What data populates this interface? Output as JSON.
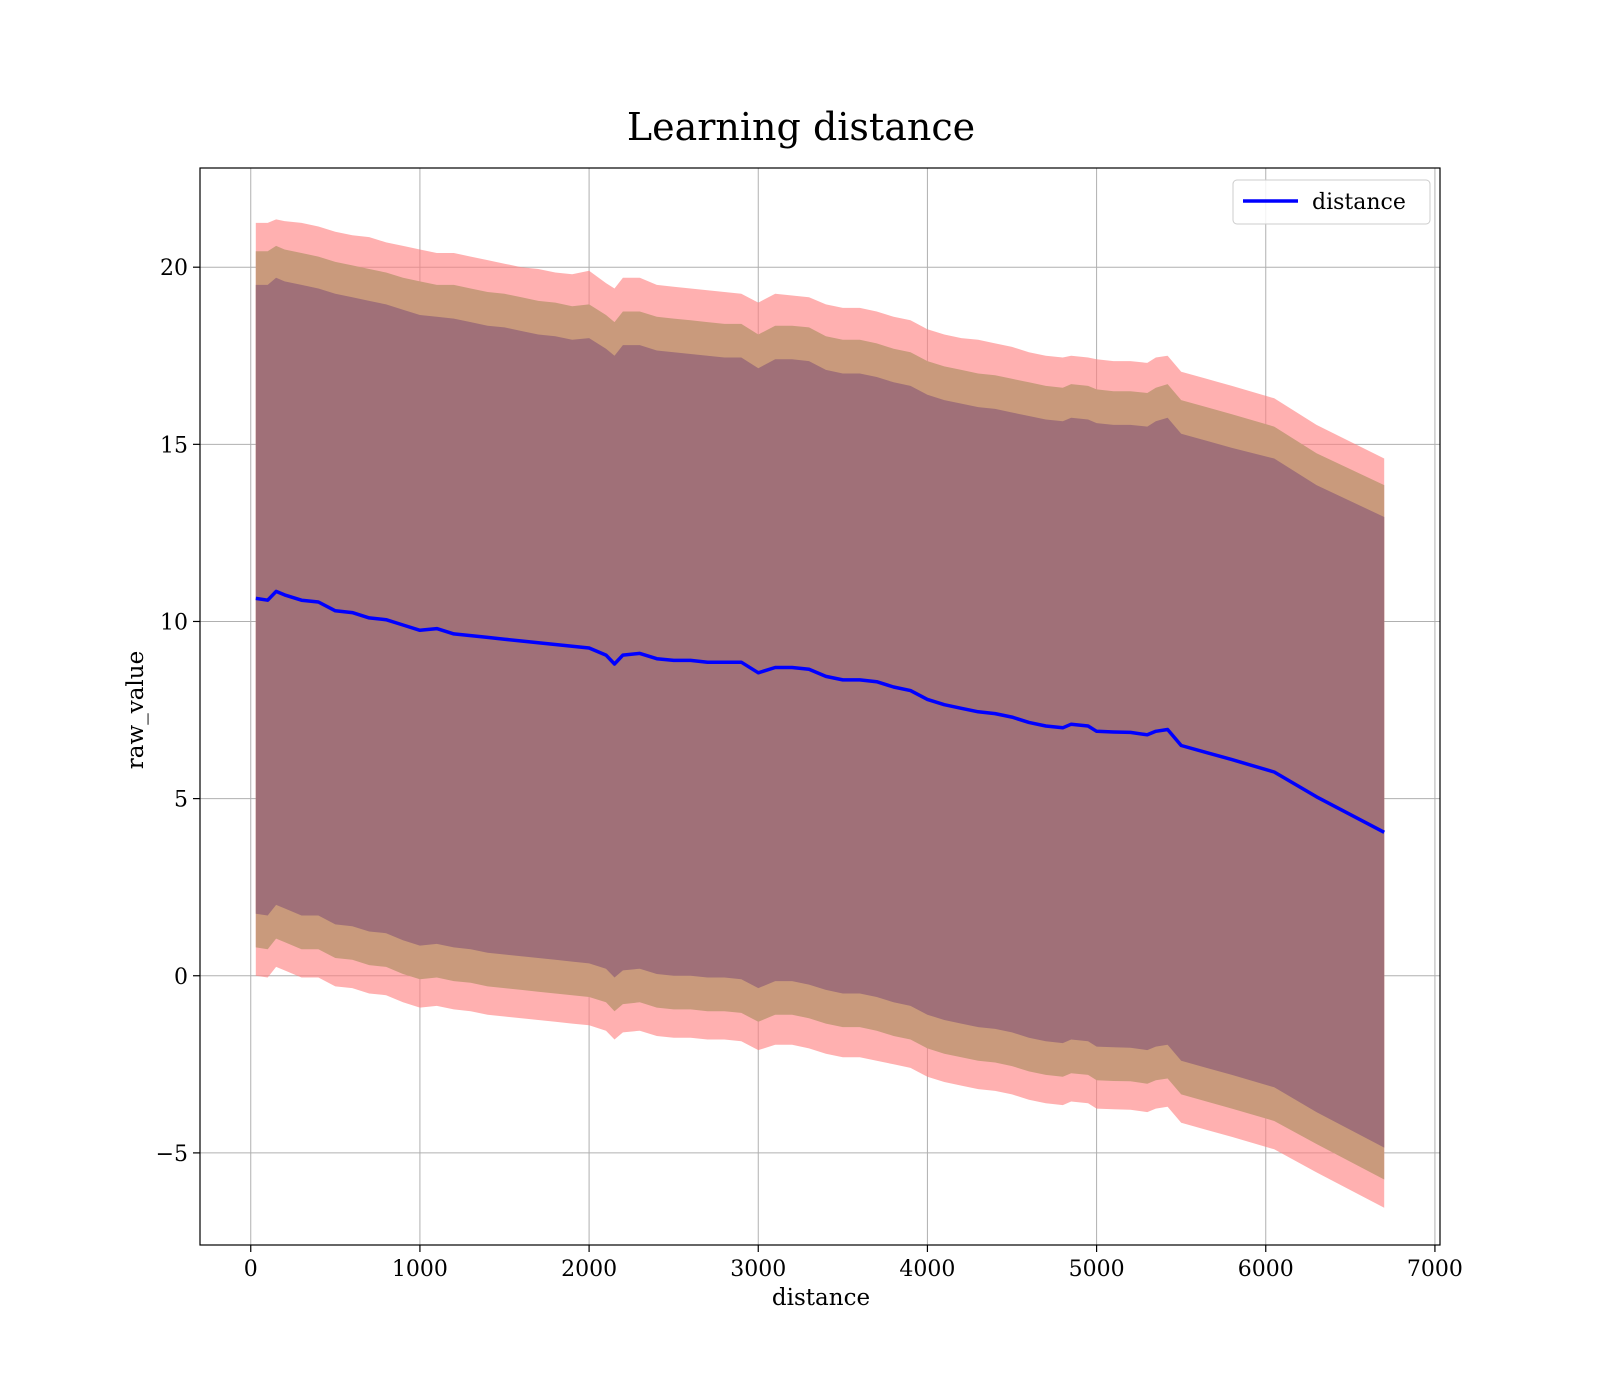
{
  "chart_data": {
    "type": "line",
    "title": "Learning distance",
    "xlabel": "distance",
    "ylabel": "raw_value",
    "xlim": [
      -300,
      7030
    ],
    "ylim": [
      -7.6,
      22.8
    ],
    "xticks": [
      0,
      1000,
      2000,
      3000,
      4000,
      5000,
      6000,
      7000
    ],
    "xtick_labels": [
      "0",
      "1000",
      "2000",
      "3000",
      "4000",
      "5000",
      "6000",
      "7000"
    ],
    "yticks": [
      -5,
      0,
      5,
      10,
      15,
      20
    ],
    "ytick_labels": [
      "−5",
      "0",
      "5",
      "10",
      "15",
      "20"
    ],
    "grid": true,
    "legend": {
      "position": "top-right",
      "entries": [
        "distance"
      ]
    },
    "colors": {
      "line": "#0000ff",
      "band_outer": "#ff8080",
      "band_middle": "#c99a7c",
      "band_inner": "#a07078"
    },
    "x": [
      30,
      100,
      150,
      200,
      300,
      400,
      500,
      600,
      700,
      800,
      900,
      1000,
      1100,
      1200,
      1300,
      1400,
      1500,
      1600,
      1700,
      1800,
      1900,
      2000,
      2100,
      2150,
      2200,
      2300,
      2400,
      2500,
      2600,
      2700,
      2800,
      2900,
      3000,
      3100,
      3200,
      3300,
      3400,
      3500,
      3600,
      3700,
      3800,
      3900,
      4000,
      4100,
      4200,
      4300,
      4400,
      4500,
      4600,
      4700,
      4800,
      4850,
      4950,
      5000,
      5100,
      5200,
      5300,
      5350,
      5420,
      5500,
      5650,
      5800,
      6050,
      6300,
      6700
    ],
    "series": [
      {
        "name": "distance",
        "values": [
          10.65,
          10.6,
          10.85,
          10.75,
          10.6,
          10.55,
          10.3,
          10.25,
          10.1,
          10.05,
          9.9,
          9.75,
          9.8,
          9.65,
          9.6,
          9.55,
          9.5,
          9.45,
          9.4,
          9.35,
          9.3,
          9.25,
          9.05,
          8.8,
          9.05,
          9.1,
          8.95,
          8.9,
          8.9,
          8.85,
          8.85,
          8.85,
          8.55,
          8.7,
          8.7,
          8.65,
          8.45,
          8.35,
          8.35,
          8.3,
          8.15,
          8.05,
          7.8,
          7.65,
          7.55,
          7.45,
          7.4,
          7.3,
          7.15,
          7.05,
          7.0,
          7.1,
          7.05,
          6.9,
          6.88,
          6.87,
          6.8,
          6.9,
          6.95,
          6.5,
          6.3,
          6.1,
          5.75,
          5.05,
          4.05
        ]
      }
    ],
    "bands": [
      {
        "upper": [
          21.25,
          21.25,
          21.35,
          21.3,
          21.25,
          21.15,
          21.0,
          20.9,
          20.85,
          20.7,
          20.6,
          20.5,
          20.4,
          20.4,
          20.3,
          20.2,
          20.1,
          20.0,
          19.95,
          19.85,
          19.8,
          19.9,
          19.55,
          19.4,
          19.7,
          19.7,
          19.5,
          19.45,
          19.4,
          19.35,
          19.3,
          19.25,
          19.0,
          19.25,
          19.2,
          19.15,
          18.95,
          18.85,
          18.85,
          18.75,
          18.6,
          18.5,
          18.25,
          18.1,
          18.0,
          17.95,
          17.85,
          17.75,
          17.6,
          17.5,
          17.45,
          17.5,
          17.45,
          17.4,
          17.35,
          17.35,
          17.3,
          17.45,
          17.5,
          17.05,
          16.85,
          16.65,
          16.3,
          15.55,
          14.6
        ],
        "lower": [
          0.0,
          -0.05,
          0.25,
          0.15,
          -0.05,
          -0.05,
          -0.3,
          -0.35,
          -0.5,
          -0.55,
          -0.75,
          -0.9,
          -0.85,
          -0.95,
          -1.0,
          -1.1,
          -1.15,
          -1.2,
          -1.25,
          -1.3,
          -1.35,
          -1.4,
          -1.55,
          -1.8,
          -1.6,
          -1.55,
          -1.7,
          -1.75,
          -1.75,
          -1.8,
          -1.8,
          -1.85,
          -2.1,
          -1.95,
          -1.95,
          -2.05,
          -2.2,
          -2.3,
          -2.3,
          -2.4,
          -2.5,
          -2.6,
          -2.85,
          -3.0,
          -3.1,
          -3.2,
          -3.25,
          -3.35,
          -3.5,
          -3.6,
          -3.65,
          -3.55,
          -3.6,
          -3.75,
          -3.77,
          -3.78,
          -3.85,
          -3.75,
          -3.7,
          -4.15,
          -4.35,
          -4.55,
          -4.9,
          -5.55,
          -6.55
        ]
      },
      {
        "upper": [
          20.45,
          20.45,
          20.6,
          20.5,
          20.4,
          20.3,
          20.15,
          20.05,
          19.95,
          19.85,
          19.7,
          19.6,
          19.5,
          19.5,
          19.4,
          19.3,
          19.25,
          19.15,
          19.05,
          19.0,
          18.9,
          18.95,
          18.65,
          18.45,
          18.75,
          18.75,
          18.6,
          18.55,
          18.5,
          18.45,
          18.4,
          18.4,
          18.1,
          18.35,
          18.35,
          18.3,
          18.05,
          17.95,
          17.95,
          17.85,
          17.7,
          17.6,
          17.35,
          17.2,
          17.1,
          17.0,
          16.95,
          16.85,
          16.75,
          16.65,
          16.6,
          16.7,
          16.65,
          16.55,
          16.5,
          16.5,
          16.45,
          16.6,
          16.7,
          16.25,
          16.05,
          15.85,
          15.5,
          14.75,
          13.85
        ],
        "lower": [
          0.8,
          0.75,
          1.05,
          0.95,
          0.75,
          0.75,
          0.5,
          0.45,
          0.3,
          0.25,
          0.05,
          -0.1,
          -0.05,
          -0.15,
          -0.2,
          -0.3,
          -0.35,
          -0.4,
          -0.45,
          -0.5,
          -0.55,
          -0.6,
          -0.75,
          -1.0,
          -0.8,
          -0.75,
          -0.9,
          -0.95,
          -0.95,
          -1.0,
          -1.0,
          -1.05,
          -1.3,
          -1.1,
          -1.1,
          -1.2,
          -1.35,
          -1.45,
          -1.45,
          -1.55,
          -1.7,
          -1.8,
          -2.05,
          -2.2,
          -2.3,
          -2.4,
          -2.45,
          -2.55,
          -2.7,
          -2.8,
          -2.85,
          -2.75,
          -2.8,
          -2.95,
          -2.97,
          -2.98,
          -3.05,
          -2.95,
          -2.9,
          -3.35,
          -3.55,
          -3.75,
          -4.1,
          -4.75,
          -5.75
        ]
      },
      {
        "upper": [
          19.5,
          19.5,
          19.7,
          19.6,
          19.5,
          19.4,
          19.25,
          19.15,
          19.05,
          18.95,
          18.8,
          18.65,
          18.6,
          18.55,
          18.45,
          18.35,
          18.3,
          18.2,
          18.1,
          18.05,
          17.95,
          18.0,
          17.7,
          17.5,
          17.8,
          17.8,
          17.65,
          17.6,
          17.55,
          17.5,
          17.45,
          17.45,
          17.15,
          17.4,
          17.4,
          17.35,
          17.1,
          17.0,
          17.0,
          16.9,
          16.75,
          16.65,
          16.4,
          16.25,
          16.15,
          16.05,
          16.0,
          15.9,
          15.8,
          15.7,
          15.65,
          15.75,
          15.7,
          15.6,
          15.55,
          15.55,
          15.5,
          15.65,
          15.75,
          15.3,
          15.1,
          14.9,
          14.6,
          13.85,
          12.95
        ],
        "lower": [
          1.75,
          1.7,
          2.0,
          1.9,
          1.7,
          1.7,
          1.45,
          1.4,
          1.25,
          1.2,
          1.0,
          0.85,
          0.9,
          0.8,
          0.75,
          0.65,
          0.6,
          0.55,
          0.5,
          0.45,
          0.4,
          0.35,
          0.2,
          -0.05,
          0.15,
          0.2,
          0.05,
          0.0,
          0.0,
          -0.05,
          -0.05,
          -0.1,
          -0.35,
          -0.15,
          -0.15,
          -0.25,
          -0.4,
          -0.5,
          -0.5,
          -0.6,
          -0.75,
          -0.85,
          -1.1,
          -1.25,
          -1.35,
          -1.45,
          -1.5,
          -1.6,
          -1.75,
          -1.85,
          -1.9,
          -1.8,
          -1.85,
          -2.0,
          -2.02,
          -2.03,
          -2.1,
          -2.0,
          -1.95,
          -2.4,
          -2.6,
          -2.8,
          -3.15,
          -3.85,
          -4.85
        ]
      }
    ]
  }
}
